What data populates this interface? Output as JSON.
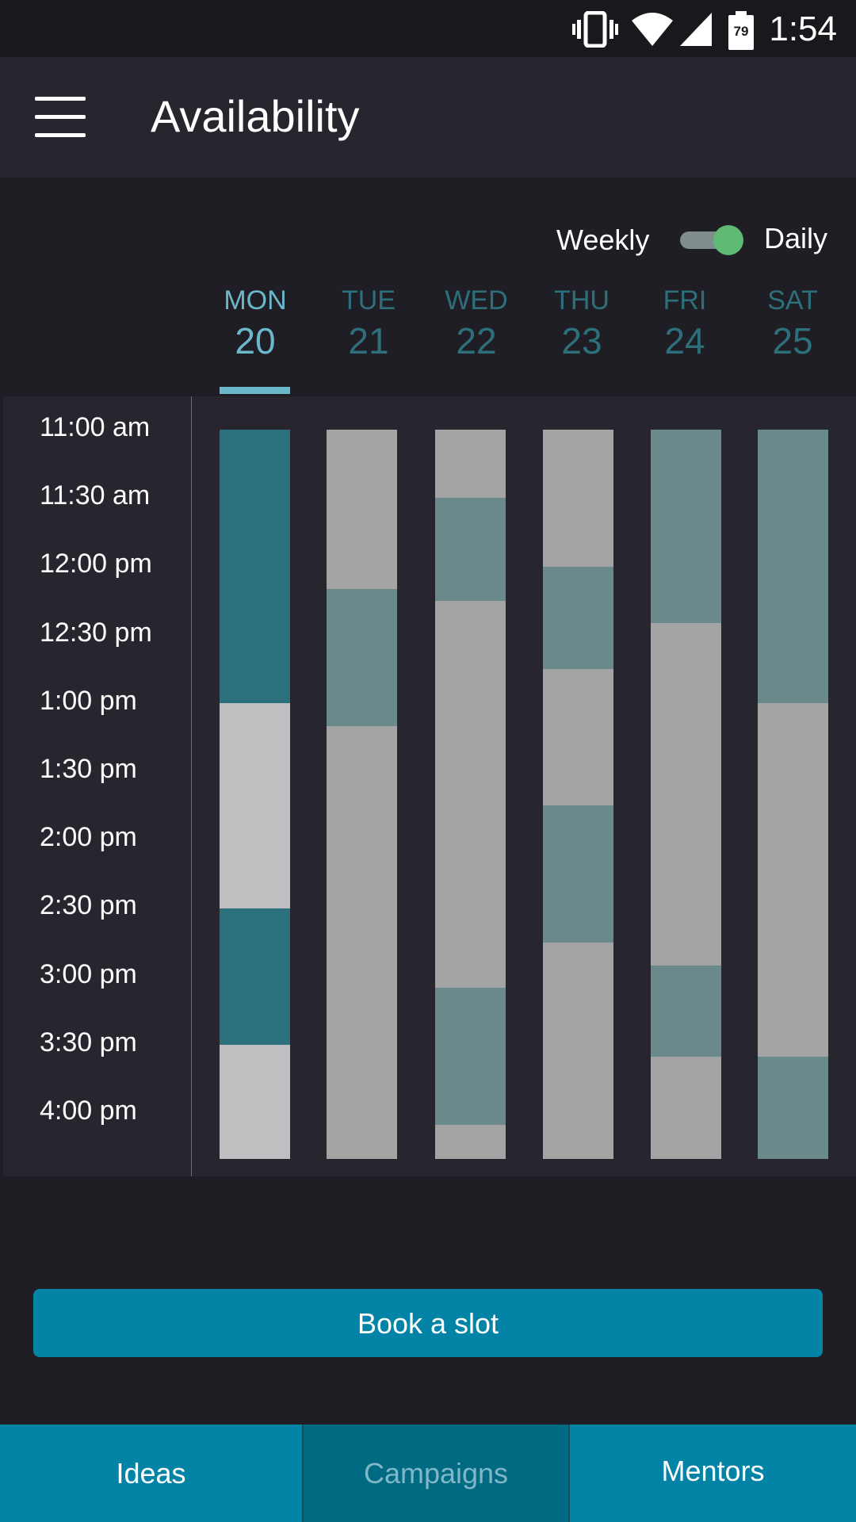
{
  "status_bar": {
    "time": "1:54",
    "battery_level": "79",
    "icons": [
      "vibrate-icon",
      "wifi-icon",
      "signal-icon",
      "battery-icon"
    ]
  },
  "app_bar": {
    "title": "Availability",
    "menu_icon": "hamburger-menu-icon"
  },
  "view_toggle": {
    "left_label": "Weekly",
    "right_label": "Daily",
    "selected": "Daily"
  },
  "days": [
    {
      "name": "MON",
      "date": "20",
      "selected": true
    },
    {
      "name": "TUE",
      "date": "21",
      "selected": false
    },
    {
      "name": "WED",
      "date": "22",
      "selected": false
    },
    {
      "name": "THU",
      "date": "23",
      "selected": false
    },
    {
      "name": "FRI",
      "date": "24",
      "selected": false
    },
    {
      "name": "SAT",
      "date": "25",
      "selected": false
    }
  ],
  "time_slots": [
    "11:00 am",
    "11:30 am",
    "12:00 pm",
    "12:30 pm",
    "1:00 pm",
    "1:30 pm",
    "2:00 pm",
    "2:30 pm",
    "3:00 pm",
    "3:30 pm",
    "4:00 pm"
  ],
  "availability": [
    {
      "day": "MON",
      "blocks": [
        {
          "start": "11:00 am",
          "end": "1:00 pm",
          "status": "available"
        },
        {
          "start": "1:00 pm",
          "end": "2:30 pm",
          "status": "unavailable"
        },
        {
          "start": "2:30 pm",
          "end": "3:30 pm",
          "status": "available"
        },
        {
          "start": "3:30 pm",
          "end": "4:20 pm",
          "status": "unavailable"
        }
      ]
    },
    {
      "day": "TUE",
      "blocks": [
        {
          "start": "11:00 am",
          "end": "12:10 pm",
          "status": "unavailable"
        },
        {
          "start": "12:10 pm",
          "end": "1:10 pm",
          "status": "available"
        },
        {
          "start": "1:10 pm",
          "end": "4:20 pm",
          "status": "unavailable"
        }
      ]
    },
    {
      "day": "WED",
      "blocks": [
        {
          "start": "11:00 am",
          "end": "11:30 am",
          "status": "unavailable"
        },
        {
          "start": "11:30 am",
          "end": "12:15 pm",
          "status": "available"
        },
        {
          "start": "12:15 pm",
          "end": "3:05 pm",
          "status": "unavailable"
        },
        {
          "start": "3:05 pm",
          "end": "4:05 pm",
          "status": "available"
        },
        {
          "start": "4:05 pm",
          "end": "4:20 pm",
          "status": "unavailable"
        }
      ]
    },
    {
      "day": "THU",
      "blocks": [
        {
          "start": "11:00 am",
          "end": "12:00 pm",
          "status": "unavailable"
        },
        {
          "start": "12:00 pm",
          "end": "12:45 pm",
          "status": "available"
        },
        {
          "start": "12:45 pm",
          "end": "1:45 pm",
          "status": "unavailable"
        },
        {
          "start": "1:45 pm",
          "end": "2:45 pm",
          "status": "available"
        },
        {
          "start": "2:45 pm",
          "end": "4:20 pm",
          "status": "unavailable"
        }
      ]
    },
    {
      "day": "FRI",
      "blocks": [
        {
          "start": "11:00 am",
          "end": "12:25 pm",
          "status": "available"
        },
        {
          "start": "12:25 pm",
          "end": "2:55 pm",
          "status": "unavailable"
        },
        {
          "start": "2:55 pm",
          "end": "3:35 pm",
          "status": "available"
        },
        {
          "start": "3:35 pm",
          "end": "4:20 pm",
          "status": "unavailable"
        }
      ]
    },
    {
      "day": "SAT",
      "blocks": [
        {
          "start": "11:00 am",
          "end": "1:00 pm",
          "status": "available"
        },
        {
          "start": "1:00 pm",
          "end": "3:35 pm",
          "status": "unavailable"
        },
        {
          "start": "3:35 pm",
          "end": "4:20 pm",
          "status": "available"
        }
      ]
    }
  ],
  "colors": {
    "selected_available": "#2b707c",
    "selected_unavailable": "#bdbfc0",
    "other_available": "#6a898b",
    "other_unavailable": "#a4a4a4",
    "accent": "#0384a6",
    "toggle_on": "#5fbb73"
  },
  "actions": {
    "book_label": "Book a slot"
  },
  "bottom_nav": [
    {
      "label": "Ideas",
      "active": false
    },
    {
      "label": "Campaigns",
      "active": true
    },
    {
      "label": "Mentors",
      "active": false
    }
  ]
}
